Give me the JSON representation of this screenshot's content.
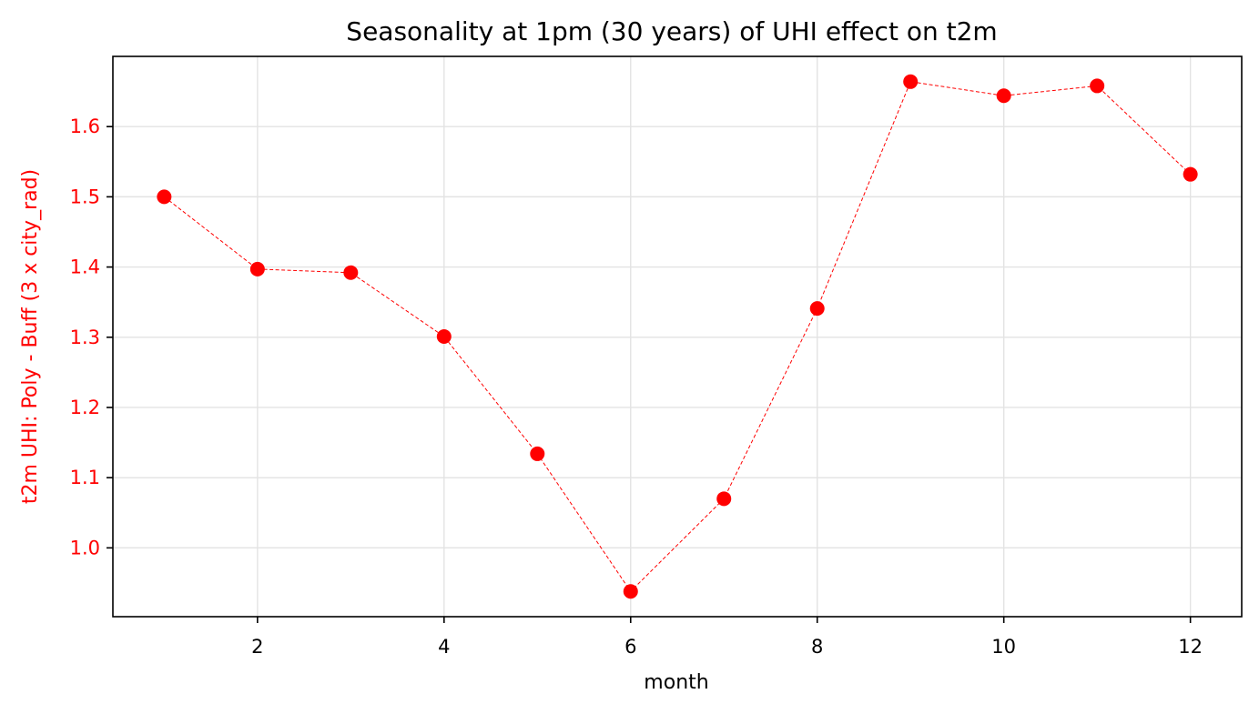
{
  "chart_data": {
    "type": "line",
    "title": "Seasonality at 1pm (30 years) of UHI effect on t2m",
    "xlabel": "month",
    "ylabel": "t2m UHI: Poly - Buff (3 x city_rad)",
    "x": [
      1,
      2,
      3,
      4,
      5,
      6,
      7,
      8,
      9,
      10,
      11,
      12
    ],
    "series": [
      {
        "values": [
          1.5,
          1.397,
          1.392,
          1.301,
          1.134,
          0.938,
          1.07,
          1.341,
          1.664,
          1.644,
          1.658,
          1.532
        ],
        "color": "#ff0000",
        "line_style": "dashed",
        "marker": "circle"
      }
    ],
    "xlim": [
      0.45,
      12.55
    ],
    "ylim": [
      0.902,
      1.7
    ],
    "xticks": [
      2,
      4,
      6,
      8,
      10,
      12
    ],
    "yticks": [
      1.0,
      1.1,
      1.2,
      1.3,
      1.4,
      1.5,
      1.6
    ],
    "ytick_labels": [
      "1.0",
      "1.1",
      "1.2",
      "1.3",
      "1.4",
      "1.5",
      "1.6"
    ],
    "grid": true,
    "axis_colors": {
      "y_ticks_and_label": "#ff0000",
      "x_ticks_and_label": "#000000"
    }
  }
}
